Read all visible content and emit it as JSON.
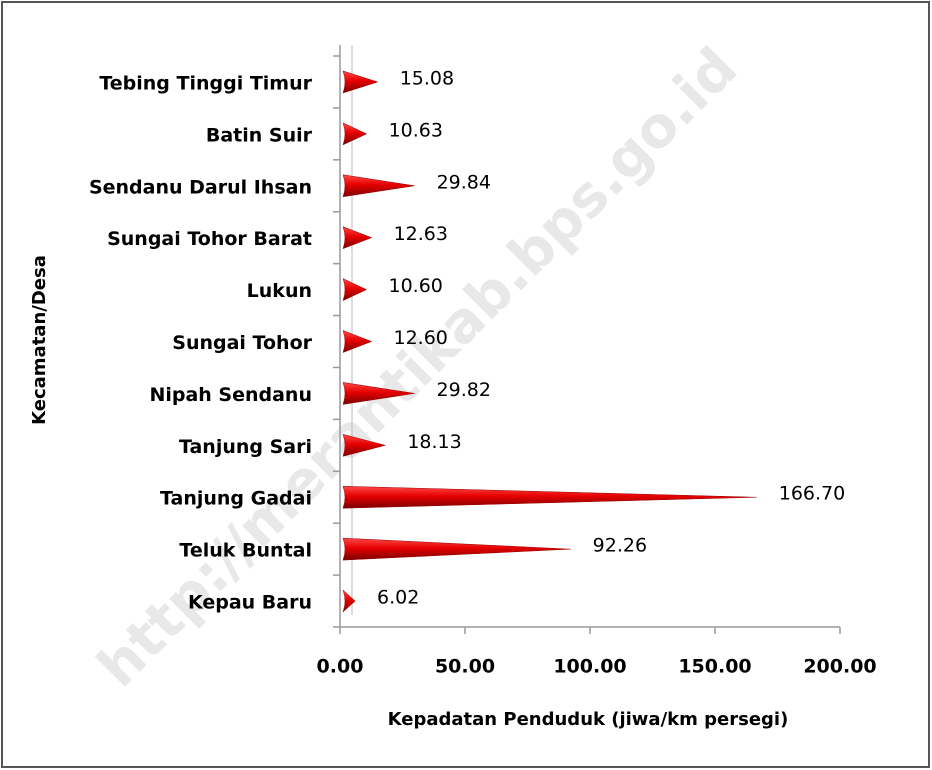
{
  "chart_data": {
    "type": "bar",
    "orientation": "horizontal",
    "categories": [
      "Tebing Tinggi Timur",
      "Batin Suir",
      "Sendanu Darul Ihsan",
      "Sungai Tohor Barat",
      "Lukun",
      "Sungai Tohor",
      "Nipah Sendanu",
      "Tanjung Sari",
      "Tanjung Gadai",
      "Teluk Buntal",
      "Kepau Baru"
    ],
    "values": [
      15.08,
      10.63,
      29.84,
      12.63,
      10.6,
      12.6,
      29.82,
      18.13,
      166.7,
      92.26,
      6.02
    ],
    "value_labels": [
      "15.08",
      "10.63",
      "29.84",
      "12.63",
      "10.60",
      "12.60",
      "29.82",
      "18.13",
      "166.70",
      "92.26",
      "6.02"
    ],
    "color": "#e00000",
    "xlim": [
      0,
      200
    ],
    "xticks": [
      {
        "value": 0,
        "label": "0.00"
      },
      {
        "value": 50,
        "label": "50.00"
      },
      {
        "value": 100,
        "label": "100.00"
      },
      {
        "value": 150,
        "label": "150.00"
      },
      {
        "value": 200,
        "label": "200.00"
      }
    ],
    "x_label": "Kepadatan Penduduk (jiwa/km persegi)",
    "y_label": "Kecamatan/Desa",
    "watermark": "http://merantikab.bps.go.id",
    "grid": false
  }
}
